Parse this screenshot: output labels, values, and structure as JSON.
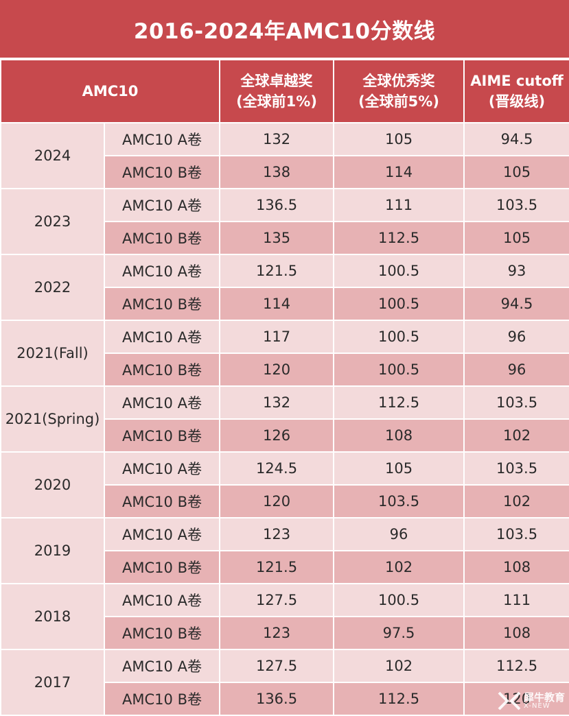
{
  "title": "2016-2024年AMC10分数线",
  "header": {
    "exam": "AMC10",
    "top1_line1": "全球卓越奖",
    "top1_line2": "(全球前1%)",
    "top5_line1": "全球优秀奖",
    "top5_line2": "(全球前5%)",
    "aime_line1": "AIME cutoff",
    "aime_line2": "(晋级线)"
  },
  "years": [
    {
      "year": "2024",
      "rows": [
        {
          "paper": "AMC10 A卷",
          "top1": "132",
          "top5": "105",
          "aime": "94.5"
        },
        {
          "paper": "AMC10 B卷",
          "top1": "138",
          "top5": "114",
          "aime": "105"
        }
      ]
    },
    {
      "year": "2023",
      "rows": [
        {
          "paper": "AMC10 A卷",
          "top1": "136.5",
          "top5": "111",
          "aime": "103.5"
        },
        {
          "paper": "AMC10 B卷",
          "top1": "135",
          "top5": "112.5",
          "aime": "105"
        }
      ]
    },
    {
      "year": "2022",
      "rows": [
        {
          "paper": "AMC10 A卷",
          "top1": "121.5",
          "top5": "100.5",
          "aime": "93"
        },
        {
          "paper": "AMC10 B卷",
          "top1": "114",
          "top5": "100.5",
          "aime": "94.5"
        }
      ]
    },
    {
      "year": "2021(Fall)",
      "rows": [
        {
          "paper": "AMC10 A卷",
          "top1": "117",
          "top5": "100.5",
          "aime": "96"
        },
        {
          "paper": "AMC10 B卷",
          "top1": "120",
          "top5": "100.5",
          "aime": "96"
        }
      ]
    },
    {
      "year": "2021(Spring)",
      "rows": [
        {
          "paper": "AMC10 A卷",
          "top1": "132",
          "top5": "112.5",
          "aime": "103.5"
        },
        {
          "paper": "AMC10 B卷",
          "top1": "126",
          "top5": "108",
          "aime": "102"
        }
      ]
    },
    {
      "year": "2020",
      "rows": [
        {
          "paper": "AMC10 A卷",
          "top1": "124.5",
          "top5": "105",
          "aime": "103.5"
        },
        {
          "paper": "AMC10 B卷",
          "top1": "120",
          "top5": "103.5",
          "aime": "102"
        }
      ]
    },
    {
      "year": "2019",
      "rows": [
        {
          "paper": "AMC10 A卷",
          "top1": "123",
          "top5": "96",
          "aime": "103.5"
        },
        {
          "paper": "AMC10 B卷",
          "top1": "121.5",
          "top5": "102",
          "aime": "108"
        }
      ]
    },
    {
      "year": "2018",
      "rows": [
        {
          "paper": "AMC10 A卷",
          "top1": "127.5",
          "top5": "100.5",
          "aime": "111"
        },
        {
          "paper": "AMC10 B卷",
          "top1": "123",
          "top5": "97.5",
          "aime": "108"
        }
      ]
    },
    {
      "year": "2017",
      "rows": [
        {
          "paper": "AMC10 A卷",
          "top1": "127.5",
          "top5": "102",
          "aime": "112.5"
        },
        {
          "paper": "AMC10 B卷",
          "top1": "136.5",
          "top5": "112.5",
          "aime": "120"
        }
      ]
    }
  ],
  "watermark": {
    "main": "犀牛教育",
    "sub": "X-NEW"
  },
  "colors": {
    "header": "#c7494d",
    "row_light": "#f3dadb",
    "row_dark": "#e7b2b4"
  }
}
